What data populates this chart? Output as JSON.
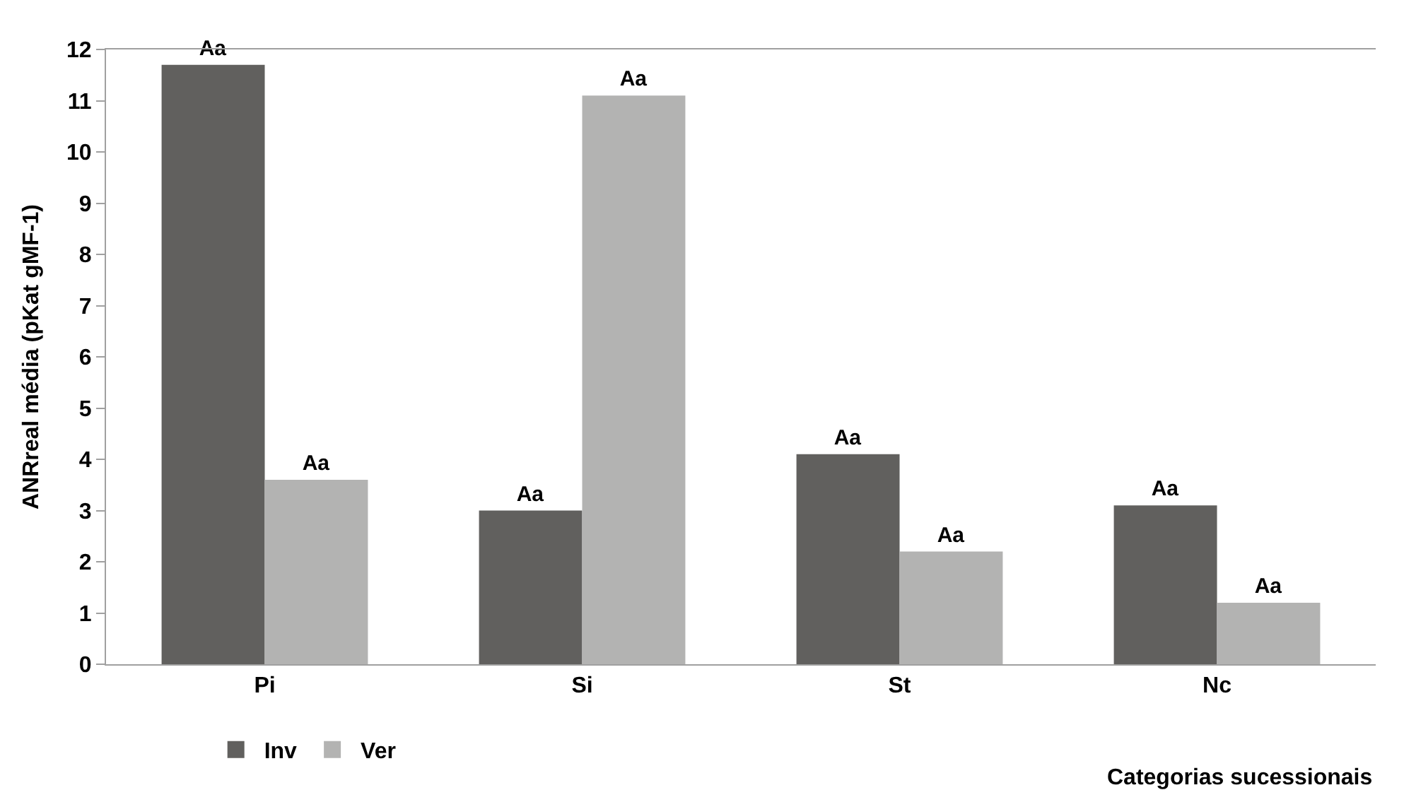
{
  "chart_data": {
    "type": "bar",
    "xlabel": "Categorias sucessionais",
    "ylabel": "ANRreal média (pKat gMF-1)",
    "categories": [
      "Pi",
      "Si",
      "St",
      "Nc"
    ],
    "series": [
      {
        "name": "Inv",
        "color": "#61605e",
        "values": [
          11.7,
          3.0,
          4.1,
          3.1
        ],
        "value_labels": [
          "Aa",
          "Aa",
          "Aa",
          "Aa"
        ]
      },
      {
        "name": "Ver",
        "color": "#b3b3b2",
        "values": [
          3.6,
          11.1,
          2.2,
          1.2
        ],
        "value_labels": [
          "Aa",
          "Aa",
          "Aa",
          "Aa"
        ]
      }
    ],
    "ylim": [
      0,
      12
    ],
    "yticks": [
      0,
      1,
      2,
      3,
      4,
      5,
      6,
      7,
      8,
      9,
      10,
      11,
      12
    ],
    "legend": "bottom left"
  }
}
